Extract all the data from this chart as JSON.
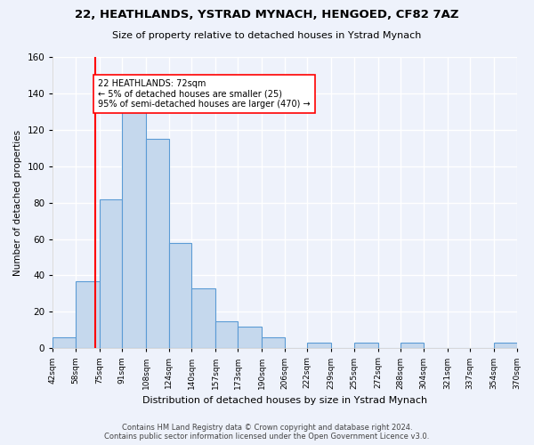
{
  "title": "22, HEATHLANDS, YSTRAD MYNACH, HENGOED, CF82 7AZ",
  "subtitle": "Size of property relative to detached houses in Ystrad Mynach",
  "xlabel": "Distribution of detached houses by size in Ystrad Mynach",
  "ylabel": "Number of detached properties",
  "bin_edges": [
    42,
    58,
    75,
    91,
    108,
    124,
    140,
    157,
    173,
    190,
    206,
    222,
    239,
    255,
    272,
    288,
    304,
    321,
    337,
    354,
    370
  ],
  "bin_labels": [
    "42sqm",
    "58sqm",
    "75sqm",
    "91sqm",
    "108sqm",
    "124sqm",
    "140sqm",
    "157sqm",
    "173sqm",
    "190sqm",
    "206sqm",
    "222sqm",
    "239sqm",
    "255sqm",
    "272sqm",
    "288sqm",
    "304sqm",
    "321sqm",
    "337sqm",
    "354sqm",
    "370sqm"
  ],
  "bar_heights": [
    6,
    37,
    82,
    130,
    115,
    58,
    33,
    15,
    12,
    6,
    0,
    3,
    0,
    3,
    0,
    3,
    0,
    0,
    0,
    3
  ],
  "bar_color": "#c5d8ed",
  "bar_edge_color": "#5b9bd5",
  "property_line_x": 72,
  "property_line_color": "red",
  "annotation_text": "22 HEATHLANDS: 72sqm\n← 5% of detached houses are smaller (25)\n95% of semi-detached houses are larger (470) →",
  "annotation_box_color": "white",
  "annotation_box_edge_color": "red",
  "footer_text": "Contains HM Land Registry data © Crown copyright and database right 2024.\nContains public sector information licensed under the Open Government Licence v3.0.",
  "ylim": [
    0,
    160
  ],
  "yticks": [
    0,
    20,
    40,
    60,
    80,
    100,
    120,
    140,
    160
  ],
  "background_color": "#eef2fb",
  "grid_color": "white"
}
